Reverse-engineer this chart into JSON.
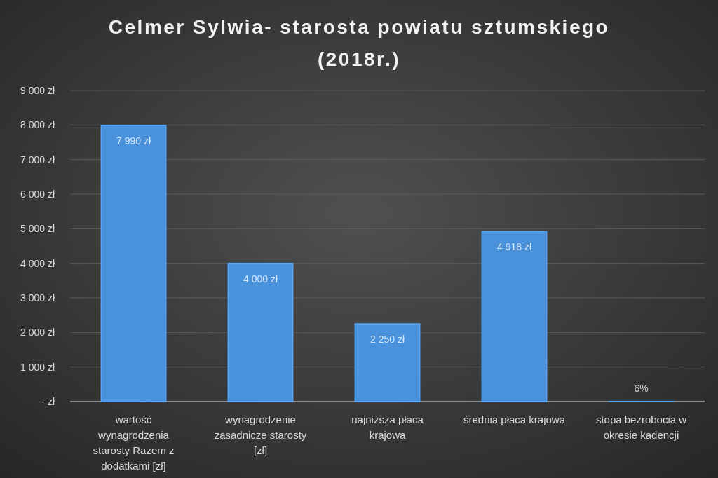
{
  "chart_data": {
    "type": "bar",
    "title": "Celmer Sylwia- starosta powiatu sztumskiego (2018r.)",
    "categories": [
      "wartość wynagrodzenia starosty Razem z dodatkami [zł]",
      "wynagrodzenie zasadnicze starosty [zł]",
      "najniższa płaca krajowa",
      "średnia płaca krajowa",
      "stopa bezrobocia w okresie kadencji"
    ],
    "values": [
      7990,
      4000,
      2250,
      4918,
      6
    ],
    "value_labels": [
      "7 990 zł",
      "4 000 zł",
      "2 250 zł",
      "4 918 zł",
      "6%"
    ],
    "color": "#4a92dc",
    "ylim": [
      0,
      9000
    ],
    "yticks": [
      {
        "value": 0,
        "label": "- zł"
      },
      {
        "value": 1000,
        "label": "1 000 zł"
      },
      {
        "value": 2000,
        "label": "2 000 zł"
      },
      {
        "value": 3000,
        "label": "3 000 zł"
      },
      {
        "value": 4000,
        "label": "4 000 zł"
      },
      {
        "value": 5000,
        "label": "5 000 zł"
      },
      {
        "value": 6000,
        "label": "6 000 zł"
      },
      {
        "value": 7000,
        "label": "7 000 zł"
      },
      {
        "value": 8000,
        "label": "8 000 zł"
      },
      {
        "value": 9000,
        "label": "9 000 zł"
      }
    ],
    "grid": "y"
  }
}
